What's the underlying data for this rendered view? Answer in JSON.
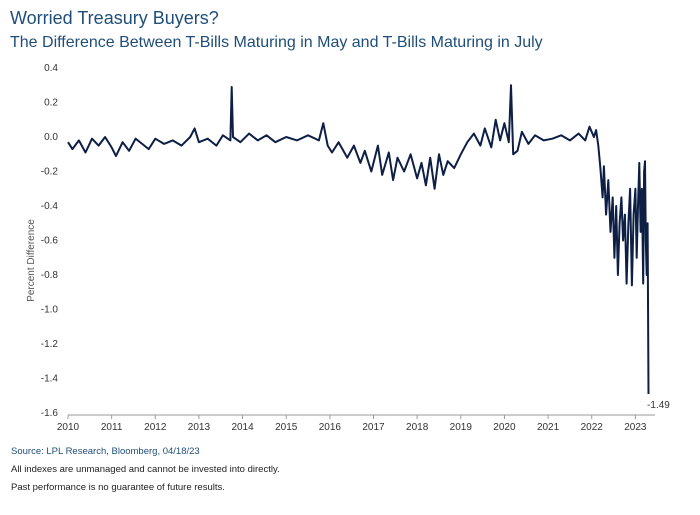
{
  "header": {
    "title": "Worried Treasury Buyers?",
    "subtitle": "The Difference Between T-Bills Maturing in May and T-Bills Maturing in July"
  },
  "footer": {
    "source": "Source: LPL Research, Bloomberg, 04/18/23",
    "disclaimer1": "All indexes are unmanaged and cannot be invested into directly.",
    "disclaimer2": "Past performance is no guarantee of future results."
  },
  "colors": {
    "line": "#0d1f45",
    "title": "#1f4e79",
    "axis": "#333333"
  },
  "chart_data": {
    "type": "line",
    "title": "",
    "xlabel": "",
    "ylabel": "Percent Difference",
    "ylim": [
      -1.6,
      0.4
    ],
    "xlim": [
      2010,
      2023.45
    ],
    "yticks": [
      "0.4",
      "0.2",
      "0.0",
      "-0.2",
      "-0.4",
      "-0.6",
      "-0.8",
      "-1.0",
      "-1.2",
      "-1.4",
      "-1.6"
    ],
    "xticks": [
      "2010",
      "2011",
      "2012",
      "2013",
      "2014",
      "2015",
      "2016",
      "2017",
      "2018",
      "2019",
      "2020",
      "2021",
      "2022",
      "2023"
    ],
    "grid": false,
    "annotation": {
      "text": "-1.49",
      "x": 2023.3,
      "y": -1.49
    },
    "series": [
      {
        "values": [
          [
            2010.0,
            -0.03
          ],
          [
            2010.1,
            -0.07
          ],
          [
            2010.25,
            -0.02
          ],
          [
            2010.4,
            -0.09
          ],
          [
            2010.55,
            -0.01
          ],
          [
            2010.7,
            -0.05
          ],
          [
            2010.85,
            0.0
          ],
          [
            2011.0,
            -0.06
          ],
          [
            2011.1,
            -0.11
          ],
          [
            2011.25,
            -0.03
          ],
          [
            2011.4,
            -0.08
          ],
          [
            2011.55,
            -0.01
          ],
          [
            2011.7,
            -0.04
          ],
          [
            2011.85,
            -0.07
          ],
          [
            2012.0,
            -0.01
          ],
          [
            2012.2,
            -0.04
          ],
          [
            2012.4,
            -0.02
          ],
          [
            2012.6,
            -0.05
          ],
          [
            2012.8,
            0.0
          ],
          [
            2012.9,
            0.05
          ],
          [
            2013.0,
            -0.03
          ],
          [
            2013.2,
            -0.01
          ],
          [
            2013.4,
            -0.05
          ],
          [
            2013.55,
            0.01
          ],
          [
            2013.72,
            -0.02
          ],
          [
            2013.75,
            0.29
          ],
          [
            2013.78,
            0.0
          ],
          [
            2013.95,
            -0.03
          ],
          [
            2014.15,
            0.02
          ],
          [
            2014.35,
            -0.02
          ],
          [
            2014.55,
            0.01
          ],
          [
            2014.75,
            -0.03
          ],
          [
            2015.0,
            0.0
          ],
          [
            2015.25,
            -0.02
          ],
          [
            2015.5,
            0.01
          ],
          [
            2015.75,
            -0.02
          ],
          [
            2015.85,
            0.08
          ],
          [
            2015.95,
            -0.05
          ],
          [
            2016.05,
            -0.09
          ],
          [
            2016.2,
            -0.03
          ],
          [
            2016.4,
            -0.12
          ],
          [
            2016.55,
            -0.05
          ],
          [
            2016.7,
            -0.15
          ],
          [
            2016.8,
            -0.08
          ],
          [
            2016.95,
            -0.2
          ],
          [
            2017.1,
            -0.05
          ],
          [
            2017.2,
            -0.22
          ],
          [
            2017.35,
            -0.09
          ],
          [
            2017.45,
            -0.25
          ],
          [
            2017.55,
            -0.12
          ],
          [
            2017.7,
            -0.2
          ],
          [
            2017.85,
            -0.1
          ],
          [
            2018.0,
            -0.24
          ],
          [
            2018.1,
            -0.15
          ],
          [
            2018.2,
            -0.28
          ],
          [
            2018.3,
            -0.12
          ],
          [
            2018.4,
            -0.3
          ],
          [
            2018.5,
            -0.1
          ],
          [
            2018.6,
            -0.22
          ],
          [
            2018.7,
            -0.14
          ],
          [
            2018.85,
            -0.18
          ],
          [
            2019.0,
            -0.1
          ],
          [
            2019.15,
            -0.03
          ],
          [
            2019.3,
            0.02
          ],
          [
            2019.45,
            -0.05
          ],
          [
            2019.55,
            0.05
          ],
          [
            2019.7,
            -0.06
          ],
          [
            2019.8,
            0.1
          ],
          [
            2019.9,
            -0.02
          ],
          [
            2020.0,
            0.08
          ],
          [
            2020.1,
            -0.03
          ],
          [
            2020.15,
            0.3
          ],
          [
            2020.2,
            -0.1
          ],
          [
            2020.3,
            -0.08
          ],
          [
            2020.4,
            0.03
          ],
          [
            2020.55,
            -0.04
          ],
          [
            2020.7,
            0.01
          ],
          [
            2020.9,
            -0.02
          ],
          [
            2021.1,
            -0.01
          ],
          [
            2021.3,
            0.01
          ],
          [
            2021.5,
            -0.02
          ],
          [
            2021.7,
            0.02
          ],
          [
            2021.85,
            -0.02
          ],
          [
            2021.95,
            0.06
          ],
          [
            2022.05,
            0.0
          ],
          [
            2022.1,
            0.04
          ],
          [
            2022.15,
            -0.05
          ],
          [
            2022.2,
            -0.18
          ],
          [
            2022.25,
            -0.35
          ],
          [
            2022.28,
            -0.17
          ],
          [
            2022.33,
            -0.45
          ],
          [
            2022.38,
            -0.25
          ],
          [
            2022.43,
            -0.55
          ],
          [
            2022.48,
            -0.35
          ],
          [
            2022.52,
            -0.7
          ],
          [
            2022.56,
            -0.4
          ],
          [
            2022.6,
            -0.8
          ],
          [
            2022.64,
            -0.5
          ],
          [
            2022.68,
            -0.35
          ],
          [
            2022.72,
            -0.6
          ],
          [
            2022.76,
            -0.45
          ],
          [
            2022.8,
            -0.85
          ],
          [
            2022.84,
            -0.5
          ],
          [
            2022.88,
            -0.3
          ],
          [
            2022.92,
            -0.86
          ],
          [
            2022.96,
            -0.45
          ],
          [
            2023.0,
            -0.3
          ],
          [
            2023.03,
            -0.7
          ],
          [
            2023.06,
            -0.4
          ],
          [
            2023.09,
            -0.15
          ],
          [
            2023.12,
            -0.55
          ],
          [
            2023.15,
            -0.3
          ],
          [
            2023.18,
            -0.85
          ],
          [
            2023.2,
            -0.2
          ],
          [
            2023.22,
            -0.14
          ],
          [
            2023.24,
            -0.6
          ],
          [
            2023.26,
            -0.8
          ],
          [
            2023.28,
            -0.5
          ],
          [
            2023.3,
            -1.49
          ]
        ]
      }
    ]
  }
}
